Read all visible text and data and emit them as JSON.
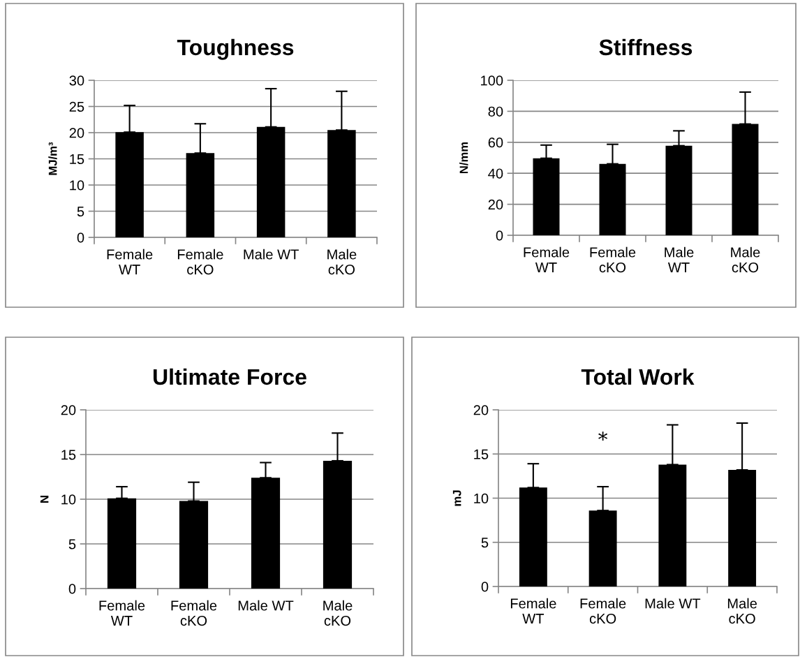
{
  "chart_data": [
    {
      "type": "bar",
      "title": "Toughness",
      "ylabel": "MJ/m³",
      "categories": [
        "Female\nWT",
        "Female\ncKO",
        "Male WT",
        "Male\ncKO"
      ],
      "values": [
        20.1,
        16.1,
        21.1,
        20.5
      ],
      "errors": [
        [
          20.1,
          25.2
        ],
        [
          16.1,
          21.7
        ],
        [
          21.1,
          28.4
        ],
        [
          20.5,
          27.9
        ]
      ],
      "color": "#000000",
      "ylim": [
        0,
        30
      ],
      "yticks": [
        0,
        5,
        10,
        15,
        20,
        25,
        30
      ],
      "grid": "y",
      "legend": false
    },
    {
      "type": "bar",
      "title": "Stiffness",
      "ylabel": "N/mm",
      "categories": [
        "Female\nWT",
        "Female\ncKO",
        "Male\nWT",
        "Male\ncKO"
      ],
      "values": [
        49.7,
        46.1,
        57.8,
        71.8
      ],
      "errors": [
        [
          49.7,
          58.2
        ],
        [
          46.1,
          58.7
        ],
        [
          57.8,
          67.4
        ],
        [
          71.8,
          92.4
        ]
      ],
      "color": "#000000",
      "ylim": [
        0,
        100
      ],
      "yticks": [
        0,
        20,
        40,
        60,
        80,
        100
      ],
      "grid": "y",
      "legend": false
    },
    {
      "type": "bar",
      "title": "Ultimate Force",
      "ylabel": "N",
      "categories": [
        "Female\nWT",
        "Female\ncKO",
        "Male WT",
        "Male\ncKO"
      ],
      "values": [
        10.1,
        9.8,
        12.4,
        14.3
      ],
      "errors": [
        [
          10.1,
          11.4
        ],
        [
          9.8,
          11.9
        ],
        [
          12.4,
          14.1
        ],
        [
          14.3,
          17.4
        ]
      ],
      "color": "#000000",
      "ylim": [
        0,
        20
      ],
      "yticks": [
        0,
        5,
        10,
        15,
        20
      ],
      "grid": "y",
      "legend": false
    },
    {
      "type": "bar",
      "title": "Total Work",
      "ylabel": "mJ",
      "categories": [
        "Female\nWT",
        "Female\ncKO",
        "Male WT",
        "Male\ncKO"
      ],
      "values": [
        11.2,
        8.6,
        13.8,
        13.2
      ],
      "errors": [
        [
          11.2,
          13.9
        ],
        [
          8.6,
          11.3
        ],
        [
          13.8,
          18.3
        ],
        [
          13.2,
          18.5
        ]
      ],
      "color": "#000000",
      "ylim": [
        0,
        20
      ],
      "yticks": [
        0,
        5,
        10,
        15,
        20
      ],
      "grid": "y",
      "legend": false,
      "annotations": [
        "*"
      ]
    }
  ]
}
